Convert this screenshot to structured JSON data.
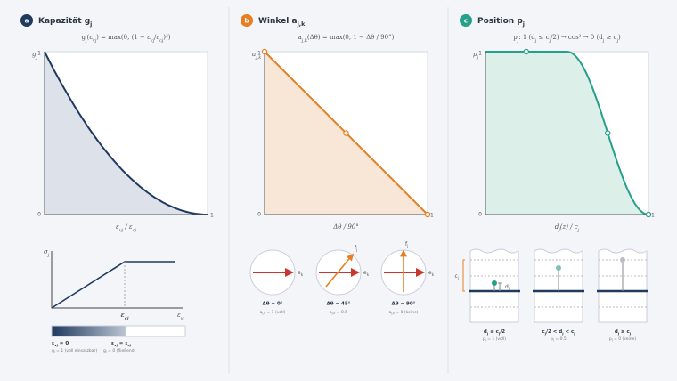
{
  "panels": [
    {
      "badge": "a",
      "title": [
        {
          "t": "Kapazität g"
        },
        {
          "sub": "j"
        }
      ],
      "formula": [
        {
          "t": "g"
        },
        {
          "sub": "j"
        },
        {
          "t": "(ε"
        },
        {
          "sub": "vj"
        },
        {
          "t": ") = max(0, (1 − ε"
        },
        {
          "sub": "vj"
        },
        {
          "t": "/ε"
        },
        {
          "sub": "cj"
        },
        {
          "t": ")²)"
        }
      ],
      "plot": {
        "y_label": [
          {
            "t": "g"
          },
          {
            "sub": "j"
          }
        ],
        "y_top": "1",
        "origin": "0",
        "x_end": "1",
        "x_label": [
          {
            "t": "ε"
          },
          {
            "sub": "vj"
          },
          {
            "t": " / ε"
          },
          {
            "sub": "cj"
          }
        ]
      },
      "stress_plot": {
        "y_label": [
          {
            "t": "σ"
          },
          {
            "sub": "j"
          }
        ],
        "x_mark": [
          {
            "t": "ε"
          },
          {
            "sub": "cj"
          }
        ],
        "x_label": [
          {
            "t": "ε"
          },
          {
            "sub": "vj"
          }
        ]
      },
      "legend": [
        {
          "head": [
            {
              "t": "ε"
            },
            {
              "sub": "vj"
            },
            {
              "t": " = 0"
            }
          ],
          "note": [
            {
              "t": "g"
            },
            {
              "sub": "j"
            },
            {
              "t": " = 1 (voll einsatzbar)"
            }
          ]
        },
        {
          "head": [
            {
              "t": "ε"
            },
            {
              "sub": "vj"
            },
            {
              "t": " = ε"
            },
            {
              "sub": "cj"
            }
          ],
          "note": [
            {
              "t": "g"
            },
            {
              "sub": "j"
            },
            {
              "t": " = 0 (fließend)"
            }
          ]
        }
      ]
    },
    {
      "badge": "b",
      "title": [
        {
          "t": "Winkel a"
        },
        {
          "sub": "j,k"
        }
      ],
      "formula": [
        {
          "t": "a"
        },
        {
          "sub": "j,k"
        },
        {
          "t": "(Δθ) = max(0, 1 − Δθ / 90°)"
        }
      ],
      "plot": {
        "y_label": [
          {
            "t": "a"
          },
          {
            "sub": "j,k"
          }
        ],
        "y_top": "1",
        "origin": "0",
        "x_end": "1",
        "x_label": "Δθ / 90°"
      },
      "cases": [
        {
          "head": "Δθ = 0°",
          "note": [
            {
              "t": "a"
            },
            {
              "sub": "j,k"
            },
            {
              "t": " = 1 (voll)"
            }
          ],
          "e": [
            {
              "t": "e"
            },
            {
              "sub": "k"
            }
          ]
        },
        {
          "head": "Δθ = 45°",
          "note": [
            {
              "t": "a"
            },
            {
              "sub": "j,k"
            },
            {
              "t": " = 0.5"
            }
          ],
          "e": [
            {
              "t": "e"
            },
            {
              "sub": "k"
            }
          ],
          "f": [
            {
              "t": "f"
            },
            {
              "sub": "j"
            }
          ]
        },
        {
          "head": "Δθ = 90°",
          "note": [
            {
              "t": "a"
            },
            {
              "sub": "j,k"
            },
            {
              "t": " = 0 (keine)"
            }
          ],
          "e": [
            {
              "t": "e"
            },
            {
              "sub": "k"
            }
          ],
          "f": [
            {
              "t": "f"
            },
            {
              "sub": "j"
            }
          ]
        }
      ]
    },
    {
      "badge": "c",
      "title": [
        {
          "t": "Position p"
        },
        {
          "sub": "j"
        }
      ],
      "formula": [
        {
          "t": "p"
        },
        {
          "sub": "j"
        },
        {
          "t": ": 1 (d"
        },
        {
          "sub": "j"
        },
        {
          "t": " ≤ c"
        },
        {
          "sub": "j"
        },
        {
          "t": "/2) → cos² → 0 (d"
        },
        {
          "sub": "j"
        },
        {
          "t": " ≥ c"
        },
        {
          "sub": "j"
        },
        {
          "t": ")"
        }
      ],
      "plot": {
        "y_label": [
          {
            "t": "p"
          },
          {
            "sub": "j"
          }
        ],
        "y_top": "1",
        "origin": "0",
        "x_end": "1",
        "x_label": [
          {
            "t": "d"
          },
          {
            "sub": "j"
          },
          {
            "t": "(z) / c"
          },
          {
            "sub": "j"
          }
        ]
      },
      "c_label": [
        {
          "t": "c"
        },
        {
          "sub": "j"
        }
      ],
      "d_label": [
        {
          "t": "d"
        },
        {
          "sub": "j"
        }
      ],
      "cases": [
        {
          "head": [
            {
              "t": "d"
            },
            {
              "sub": "j"
            },
            {
              "t": " ≤ c"
            },
            {
              "sub": "j"
            },
            {
              "t": "/2"
            }
          ],
          "note": [
            {
              "t": "p"
            },
            {
              "sub": "j"
            },
            {
              "t": " = 1 (voll)"
            }
          ]
        },
        {
          "head": [
            {
              "t": "c"
            },
            {
              "sub": "j"
            },
            {
              "t": "/2 < d"
            },
            {
              "sub": "j"
            },
            {
              "t": " < c"
            },
            {
              "sub": "j"
            }
          ],
          "note": [
            {
              "t": "p"
            },
            {
              "sub": "j"
            },
            {
              "t": " = 0.5"
            }
          ]
        },
        {
          "head": [
            {
              "t": "d"
            },
            {
              "sub": "j"
            },
            {
              "t": " ≥ c"
            },
            {
              "sub": "j"
            }
          ],
          "note": [
            {
              "t": "p"
            },
            {
              "sub": "j"
            },
            {
              "t": " = 0 (keine)"
            }
          ]
        }
      ]
    }
  ]
}
